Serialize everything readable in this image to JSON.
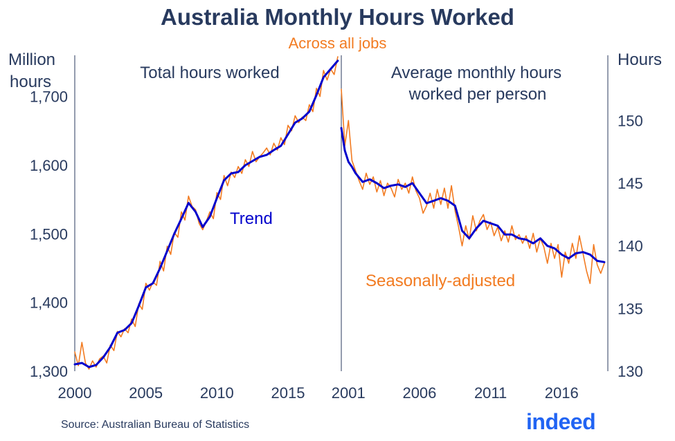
{
  "title": "Australia Monthly Hours Worked",
  "subtitle": "Across all jobs",
  "source": "Source: Australian Bureau of Statistics",
  "logo_text": "indeed",
  "colors": {
    "title": "#283A5E",
    "subtitle": "#F27B21",
    "trend": "#0000CC",
    "seasonal": "#F27B21",
    "logo": "#2164F3"
  },
  "chart_data": [
    {
      "type": "line",
      "panel_title": "Total hours worked",
      "ylabel": "Million hours",
      "ylim": [
        1300,
        1760
      ],
      "yticks": [
        "1,300",
        "1,400",
        "1,500",
        "1,600",
        "1,700"
      ],
      "xticks": [
        "2000",
        "2005",
        "2010",
        "2015"
      ],
      "xlim": [
        2000.0,
        2018.75
      ],
      "series": [
        {
          "name": "Trend",
          "x": [
            2000.0,
            2000.5,
            2001.0,
            2001.5,
            2002.0,
            2002.5,
            2003.0,
            2003.5,
            2004.0,
            2004.5,
            2005.0,
            2005.5,
            2006.0,
            2006.5,
            2007.0,
            2007.5,
            2008.0,
            2008.5,
            2009.0,
            2009.5,
            2010.0,
            2010.5,
            2011.0,
            2011.5,
            2012.0,
            2012.5,
            2013.0,
            2013.5,
            2014.0,
            2014.5,
            2015.0,
            2015.5,
            2016.0,
            2016.5,
            2017.0,
            2017.5,
            2018.0,
            2018.5
          ],
          "values": [
            1310,
            1312,
            1306,
            1309,
            1320,
            1335,
            1356,
            1360,
            1370,
            1395,
            1422,
            1428,
            1450,
            1475,
            1500,
            1522,
            1545,
            1532,
            1510,
            1525,
            1552,
            1578,
            1588,
            1590,
            1600,
            1606,
            1612,
            1615,
            1622,
            1628,
            1645,
            1662,
            1668,
            1678,
            1702,
            1728,
            1740,
            1752
          ]
        },
        {
          "name": "Seasonally-adjusted",
          "x": [
            2000.0,
            2000.25,
            2000.5,
            2000.75,
            2001.0,
            2001.25,
            2001.5,
            2001.75,
            2002.0,
            2002.25,
            2002.5,
            2002.75,
            2003.0,
            2003.25,
            2003.5,
            2003.75,
            2004.0,
            2004.25,
            2004.5,
            2004.75,
            2005.0,
            2005.25,
            2005.5,
            2005.75,
            2006.0,
            2006.25,
            2006.5,
            2006.75,
            2007.0,
            2007.25,
            2007.5,
            2007.75,
            2008.0,
            2008.25,
            2008.5,
            2008.75,
            2009.0,
            2009.25,
            2009.5,
            2009.75,
            2010.0,
            2010.25,
            2010.5,
            2010.75,
            2011.0,
            2011.25,
            2011.5,
            2011.75,
            2012.0,
            2012.25,
            2012.5,
            2012.75,
            2013.0,
            2013.25,
            2013.5,
            2013.75,
            2014.0,
            2014.25,
            2014.5,
            2014.75,
            2015.0,
            2015.25,
            2015.5,
            2015.75,
            2016.0,
            2016.25,
            2016.5,
            2016.75,
            2017.0,
            2017.25,
            2017.5,
            2017.75,
            2018.0,
            2018.25,
            2018.5
          ],
          "values": [
            1328,
            1308,
            1342,
            1312,
            1303,
            1315,
            1306,
            1318,
            1322,
            1312,
            1338,
            1330,
            1358,
            1350,
            1362,
            1356,
            1376,
            1365,
            1398,
            1390,
            1428,
            1418,
            1430,
            1425,
            1460,
            1446,
            1482,
            1470,
            1502,
            1495,
            1532,
            1520,
            1555,
            1540,
            1535,
            1515,
            1506,
            1518,
            1532,
            1522,
            1560,
            1550,
            1585,
            1570,
            1590,
            1582,
            1598,
            1588,
            1608,
            1598,
            1620,
            1605,
            1612,
            1618,
            1625,
            1615,
            1632,
            1622,
            1640,
            1630,
            1658,
            1650,
            1672,
            1662,
            1670,
            1665,
            1688,
            1678,
            1712,
            1700,
            1738,
            1724,
            1740,
            1732,
            1758
          ]
        }
      ]
    },
    {
      "type": "line",
      "panel_title": "Average monthly hours worked per person",
      "ylabel": "Hours",
      "ylim": [
        130,
        155.2
      ],
      "yticks": [
        "130",
        "135",
        "140",
        "145",
        "150"
      ],
      "xticks": [
        "2001",
        "2006",
        "2011",
        "2016"
      ],
      "xlim": [
        2000.0,
        2018.75
      ],
      "series": [
        {
          "name": "Trend",
          "x": [
            2000.0,
            2000.25,
            2000.5,
            2000.75,
            2001.0,
            2001.5,
            2002.0,
            2002.5,
            2003.0,
            2003.5,
            2004.0,
            2004.5,
            2005.0,
            2005.5,
            2006.0,
            2006.5,
            2007.0,
            2007.5,
            2008.0,
            2008.5,
            2009.0,
            2009.5,
            2010.0,
            2010.5,
            2011.0,
            2011.5,
            2012.0,
            2012.5,
            2013.0,
            2013.5,
            2014.0,
            2014.5,
            2015.0,
            2015.5,
            2016.0,
            2016.5,
            2017.0,
            2017.5,
            2018.0,
            2018.5
          ],
          "values": [
            149.4,
            147.6,
            146.7,
            146.3,
            145.8,
            145.1,
            145.3,
            145.0,
            144.6,
            144.8,
            144.9,
            144.7,
            145.0,
            144.2,
            143.4,
            143.6,
            143.8,
            143.6,
            143.2,
            141.2,
            140.6,
            141.4,
            142.0,
            141.8,
            141.6,
            140.9,
            140.9,
            140.6,
            140.5,
            140.2,
            140.6,
            140.0,
            139.8,
            139.3,
            139.0,
            139.4,
            139.5,
            139.3,
            138.8,
            138.7
          ]
        },
        {
          "name": "Seasonally-adjusted",
          "x": [
            2000.0,
            2000.25,
            2000.5,
            2000.75,
            2001.0,
            2001.25,
            2001.5,
            2001.75,
            2002.0,
            2002.25,
            2002.5,
            2002.75,
            2003.0,
            2003.25,
            2003.5,
            2003.75,
            2004.0,
            2004.25,
            2004.5,
            2004.75,
            2005.0,
            2005.25,
            2005.5,
            2005.75,
            2006.0,
            2006.25,
            2006.5,
            2006.75,
            2007.0,
            2007.25,
            2007.5,
            2007.75,
            2008.0,
            2008.25,
            2008.5,
            2008.75,
            2009.0,
            2009.25,
            2009.5,
            2009.75,
            2010.0,
            2010.25,
            2010.5,
            2010.75,
            2011.0,
            2011.25,
            2011.5,
            2011.75,
            2012.0,
            2012.25,
            2012.5,
            2012.75,
            2013.0,
            2013.25,
            2013.5,
            2013.75,
            2014.0,
            2014.25,
            2014.5,
            2014.75,
            2015.0,
            2015.25,
            2015.5,
            2015.75,
            2016.0,
            2016.25,
            2016.5,
            2016.75,
            2017.0,
            2017.25,
            2017.5,
            2017.75,
            2018.0,
            2018.25,
            2018.5
          ],
          "values": [
            152.5,
            148.0,
            150.0,
            146.8,
            146.0,
            145.2,
            144.5,
            145.8,
            144.9,
            145.5,
            144.3,
            145.2,
            144.0,
            145.0,
            144.6,
            143.9,
            145.3,
            144.5,
            145.0,
            144.2,
            145.5,
            144.4,
            143.8,
            142.6,
            143.2,
            144.2,
            143.0,
            144.5,
            143.3,
            144.6,
            143.0,
            144.8,
            142.8,
            141.5,
            140.0,
            141.6,
            140.5,
            142.4,
            141.2,
            142.0,
            142.5,
            141.3,
            141.9,
            140.8,
            141.5,
            140.4,
            141.2,
            140.3,
            141.6,
            140.5,
            140.9,
            140.2,
            140.8,
            139.8,
            141.0,
            139.5,
            140.6,
            139.9,
            138.6,
            140.2,
            139.0,
            140.1,
            137.5,
            139.5,
            138.6,
            140.2,
            139.0,
            140.8,
            139.4,
            138.0,
            137.0,
            140.1,
            138.5,
            137.8,
            138.6
          ]
        }
      ]
    }
  ],
  "labels": {
    "trend": "Trend",
    "seasonal": "Seasonally-adjusted"
  }
}
